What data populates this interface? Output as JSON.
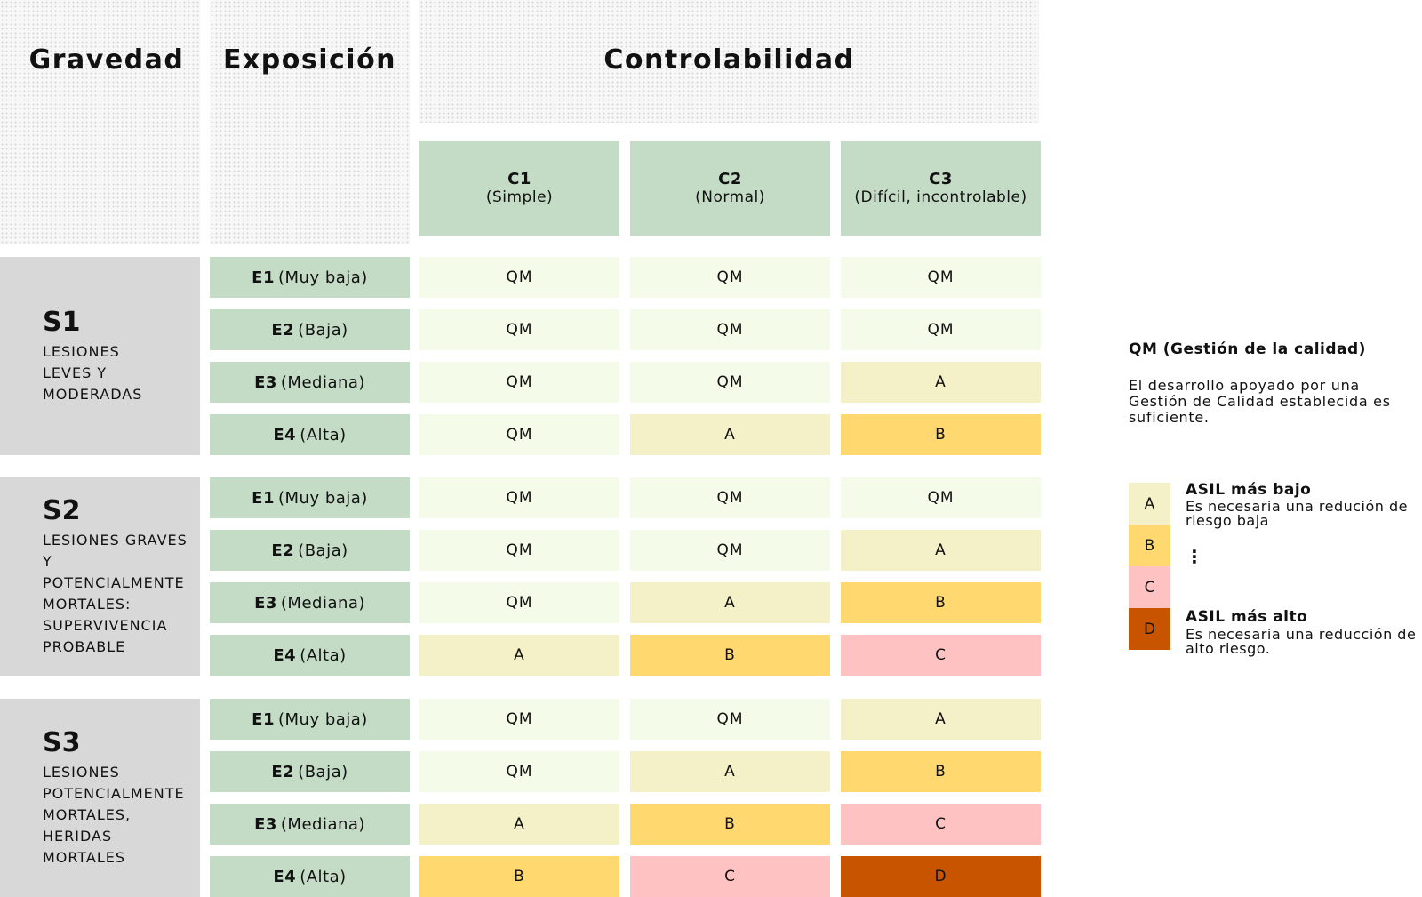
{
  "headers": {
    "severity": "Gravedad",
    "exposure": "Exposición",
    "controllability": "Controlabilidad"
  },
  "controllability_classes": [
    {
      "code": "C1",
      "label": "(Simple)"
    },
    {
      "code": "C2",
      "label": "(Normal)"
    },
    {
      "code": "C3",
      "label": "(Difícil, incontrolable)"
    }
  ],
  "severity_groups": [
    {
      "code": "S1",
      "description": "LESIONES\nLEVES Y\nMODERADAS",
      "rows": [
        {
          "code": "E1",
          "label": "(Muy baja)",
          "values": [
            "QM",
            "QM",
            "QM"
          ]
        },
        {
          "code": "E2",
          "label": "(Baja)",
          "values": [
            "QM",
            "QM",
            "QM"
          ]
        },
        {
          "code": "E3",
          "label": "(Mediana)",
          "values": [
            "QM",
            "QM",
            "A"
          ]
        },
        {
          "code": "E4",
          "label": "(Alta)",
          "values": [
            "QM",
            "A",
            "B"
          ]
        }
      ]
    },
    {
      "code": "S2",
      "description": "LESIONES GRAVES Y\nPOTENCIALMENTE\nMORTALES:\nSUPERVIVENCIA\nPROBABLE",
      "rows": [
        {
          "code": "E1",
          "label": "(Muy baja)",
          "values": [
            "QM",
            "QM",
            "QM"
          ]
        },
        {
          "code": "E2",
          "label": "(Baja)",
          "values": [
            "QM",
            "QM",
            "A"
          ]
        },
        {
          "code": "E3",
          "label": "(Mediana)",
          "values": [
            "QM",
            "A",
            "B"
          ]
        },
        {
          "code": "E4",
          "label": "(Alta)",
          "values": [
            "A",
            "B",
            "C"
          ]
        }
      ]
    },
    {
      "code": "S3",
      "description": "LESIONES\nPOTENCIALMENTE\nMORTALES,\nHERIDAS\nMORTALES",
      "rows": [
        {
          "code": "E1",
          "label": "(Muy baja)",
          "values": [
            "QM",
            "QM",
            "A"
          ]
        },
        {
          "code": "E2",
          "label": "(Baja)",
          "values": [
            "QM",
            "A",
            "B"
          ]
        },
        {
          "code": "E3",
          "label": "(Mediana)",
          "values": [
            "A",
            "B",
            "C"
          ]
        },
        {
          "code": "E4",
          "label": "(Alta)",
          "values": [
            "B",
            "C",
            "D"
          ]
        }
      ]
    }
  ],
  "legend": {
    "qm_title": "QM (Gestión de la calidad)",
    "qm_text": "El desarrollo apoyado por una Gestión de Calidad establecida es suficiente.",
    "swatches": [
      "A",
      "B",
      "C",
      "D"
    ],
    "lowest_title": "ASIL más bajo",
    "lowest_text": "Es necesaria una redución de riesgo baja",
    "dots": "⋮",
    "highest_title": "ASIL más alto",
    "highest_text": "Es necesaria una reducción de alto riesgo."
  },
  "colors": {
    "QM": "#f5fbe9",
    "A": "#f4f0c7",
    "B": "#ffd870",
    "C": "#ffc2c2",
    "D": "#c85400",
    "header_green": "#c4dbc5",
    "severity_gray": "#d8d8d8"
  }
}
